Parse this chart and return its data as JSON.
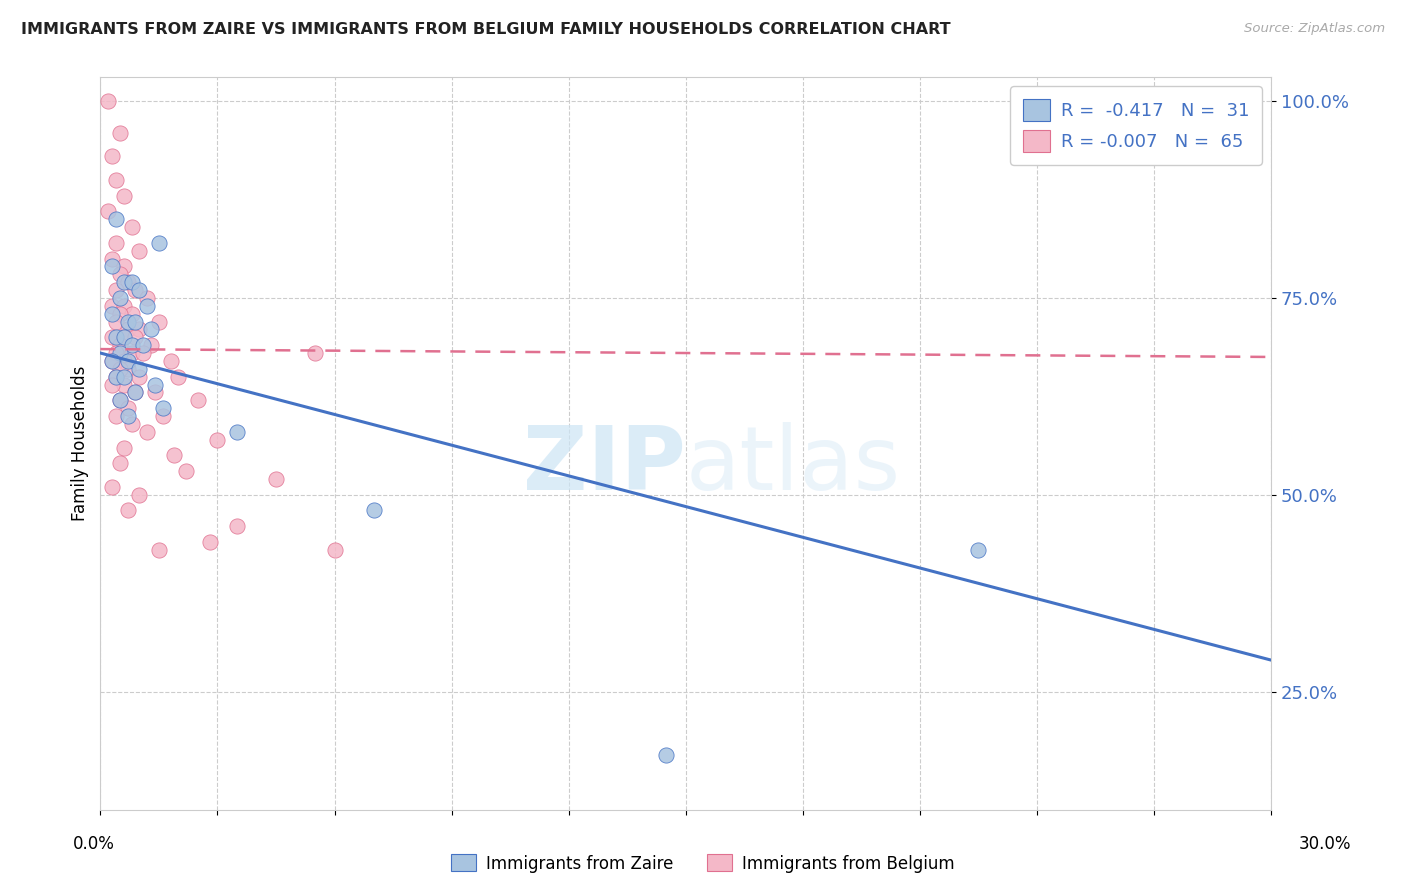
{
  "title": "IMMIGRANTS FROM ZAIRE VS IMMIGRANTS FROM BELGIUM FAMILY HOUSEHOLDS CORRELATION CHART",
  "source": "Source: ZipAtlas.com",
  "ylabel": "Family Households",
  "legend_label_blue": "Immigrants from Zaire",
  "legend_label_pink": "Immigrants from Belgium",
  "R_blue": -0.417,
  "N_blue": 31,
  "R_pink": -0.007,
  "N_pink": 65,
  "blue_color": "#a8c4e0",
  "pink_color": "#f4b8c8",
  "blue_line_color": "#4472c4",
  "pink_line_color": "#e07090",
  "watermark_zip": "ZIP",
  "watermark_atlas": "atlas",
  "blue_dots_raw": [
    [
      0.4,
      85
    ],
    [
      1.5,
      82
    ],
    [
      0.3,
      79
    ],
    [
      0.6,
      77
    ],
    [
      0.8,
      77
    ],
    [
      1.0,
      76
    ],
    [
      0.5,
      75
    ],
    [
      1.2,
      74
    ],
    [
      0.3,
      73
    ],
    [
      0.7,
      72
    ],
    [
      0.9,
      72
    ],
    [
      1.3,
      71
    ],
    [
      0.4,
      70
    ],
    [
      0.6,
      70
    ],
    [
      0.8,
      69
    ],
    [
      1.1,
      69
    ],
    [
      0.5,
      68
    ],
    [
      0.3,
      67
    ],
    [
      0.7,
      67
    ],
    [
      1.0,
      66
    ],
    [
      0.4,
      65
    ],
    [
      0.6,
      65
    ],
    [
      1.4,
      64
    ],
    [
      0.9,
      63
    ],
    [
      0.5,
      62
    ],
    [
      1.6,
      61
    ],
    [
      0.7,
      60
    ],
    [
      3.5,
      58
    ],
    [
      7.0,
      48
    ],
    [
      22.5,
      43
    ],
    [
      14.5,
      17
    ]
  ],
  "pink_dots_raw": [
    [
      0.2,
      100
    ],
    [
      0.5,
      96
    ],
    [
      0.3,
      93
    ],
    [
      0.4,
      90
    ],
    [
      0.6,
      88
    ],
    [
      0.2,
      86
    ],
    [
      0.8,
      84
    ],
    [
      0.4,
      82
    ],
    [
      1.0,
      81
    ],
    [
      0.3,
      80
    ],
    [
      0.6,
      79
    ],
    [
      0.5,
      78
    ],
    [
      0.7,
      77
    ],
    [
      0.9,
      76
    ],
    [
      0.4,
      76
    ],
    [
      1.2,
      75
    ],
    [
      0.3,
      74
    ],
    [
      0.6,
      74
    ],
    [
      0.8,
      73
    ],
    [
      0.5,
      73
    ],
    [
      1.5,
      72
    ],
    [
      0.4,
      72
    ],
    [
      0.7,
      71
    ],
    [
      1.0,
      71
    ],
    [
      0.3,
      70
    ],
    [
      0.6,
      70
    ],
    [
      0.9,
      70
    ],
    [
      1.3,
      69
    ],
    [
      0.5,
      69
    ],
    [
      0.4,
      68
    ],
    [
      0.8,
      68
    ],
    [
      1.1,
      68
    ],
    [
      0.6,
      67
    ],
    [
      0.3,
      67
    ],
    [
      1.8,
      67
    ],
    [
      0.7,
      66
    ],
    [
      0.5,
      66
    ],
    [
      1.0,
      65
    ],
    [
      0.4,
      65
    ],
    [
      2.0,
      65
    ],
    [
      0.6,
      64
    ],
    [
      0.3,
      64
    ],
    [
      0.9,
      63
    ],
    [
      1.4,
      63
    ],
    [
      0.5,
      62
    ],
    [
      2.5,
      62
    ],
    [
      0.7,
      61
    ],
    [
      1.6,
      60
    ],
    [
      0.4,
      60
    ],
    [
      0.8,
      59
    ],
    [
      1.2,
      58
    ],
    [
      3.0,
      57
    ],
    [
      0.6,
      56
    ],
    [
      1.9,
      55
    ],
    [
      0.5,
      54
    ],
    [
      2.2,
      53
    ],
    [
      4.5,
      52
    ],
    [
      0.3,
      51
    ],
    [
      1.0,
      50
    ],
    [
      5.5,
      68
    ],
    [
      0.7,
      48
    ],
    [
      3.5,
      46
    ],
    [
      2.8,
      44
    ],
    [
      1.5,
      43
    ],
    [
      6.0,
      43
    ]
  ],
  "xmin": 0.0,
  "xmax": 30.0,
  "ymin": 10.0,
  "ymax": 103.0,
  "yticks": [
    25.0,
    50.0,
    75.0,
    100.0
  ],
  "xtick_count": 11,
  "blue_line_x": [
    0.0,
    30.0
  ],
  "blue_line_y": [
    68.0,
    29.0
  ],
  "pink_line_x": [
    0.0,
    30.0
  ],
  "pink_line_y": [
    68.5,
    67.5
  ]
}
